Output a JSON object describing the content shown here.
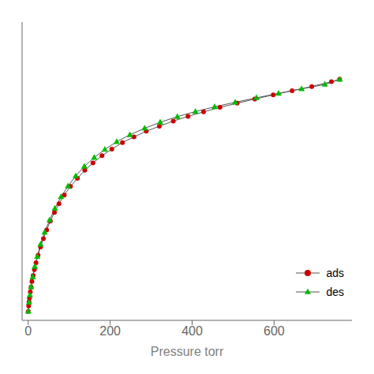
{
  "chart_data": {
    "type": "line",
    "xlabel": "Pressure torr",
    "xlim": [
      -15,
      790
    ],
    "xticks": [
      0,
      200,
      400,
      600
    ],
    "ylim": [
      0,
      1.0
    ],
    "yticks": [],
    "tick_labels": "x",
    "grid": false,
    "legend": "lower right",
    "color": "#555555",
    "series": [
      {
        "name": "ads",
        "color": "#cc0000",
        "marker": "circle",
        "x": [
          0,
          1,
          2,
          3,
          5,
          7,
          9,
          12,
          15,
          19,
          24,
          30,
          37,
          45,
          54,
          64,
          75,
          88,
          103,
          120,
          138,
          158,
          180,
          204,
          230,
          258,
          288,
          320,
          354,
          390,
          428,
          468,
          510,
          553,
          598,
          644,
          692,
          740,
          760
        ],
        "values": [
          0.03,
          0.048,
          0.062,
          0.075,
          0.095,
          0.112,
          0.13,
          0.15,
          0.17,
          0.193,
          0.218,
          0.246,
          0.274,
          0.303,
          0.333,
          0.362,
          0.391,
          0.42,
          0.449,
          0.476,
          0.503,
          0.528,
          0.552,
          0.574,
          0.596,
          0.615,
          0.634,
          0.651,
          0.668,
          0.684,
          0.699,
          0.714,
          0.728,
          0.742,
          0.756,
          0.77,
          0.784,
          0.8,
          0.808
        ]
      },
      {
        "name": "des",
        "color": "#00bb00",
        "marker": "triangle",
        "x": [
          0,
          2,
          4,
          7,
          11,
          16,
          22,
          30,
          40,
          52,
          65,
          80,
          97,
          116,
          137,
          161,
          187,
          216,
          248,
          284,
          322,
          364,
          408,
          455,
          505,
          557,
          611,
          667,
          724,
          760
        ],
        "values": [
          0.03,
          0.06,
          0.085,
          0.112,
          0.145,
          0.18,
          0.214,
          0.255,
          0.295,
          0.336,
          0.375,
          0.414,
          0.45,
          0.484,
          0.516,
          0.546,
          0.573,
          0.599,
          0.622,
          0.644,
          0.664,
          0.683,
          0.7,
          0.716,
          0.731,
          0.746,
          0.761,
          0.776,
          0.791,
          0.808
        ]
      }
    ]
  }
}
